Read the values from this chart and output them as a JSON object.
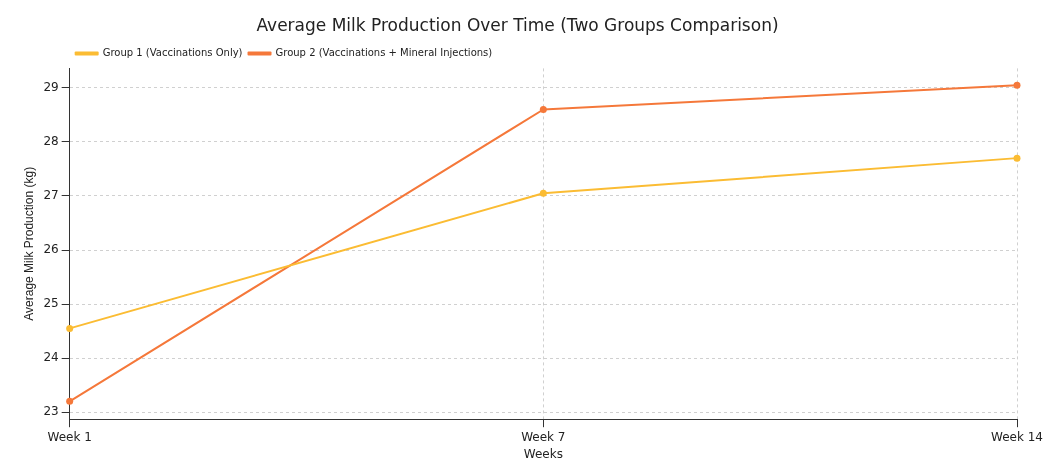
{
  "chart_data": {
    "type": "line",
    "title": "Average Milk Production Over Time (Two Groups Comparison)",
    "xlabel": "Weeks",
    "ylabel": "Average Milk Production (kg)",
    "categories": [
      "Week 1",
      "Week 7",
      "Week 14"
    ],
    "series": [
      {
        "name": "Group 1 (Vaccinations Only)",
        "color": "#fbbc33",
        "values": [
          24.55,
          27.05,
          27.7
        ]
      },
      {
        "name": "Group 2 (Vaccinations + Mineral Injections)",
        "color": "#f5783a",
        "values": [
          23.2,
          28.6,
          29.05
        ]
      }
    ],
    "ylim": [
      22.87,
      29.36
    ],
    "yticks": [
      23,
      24,
      25,
      26,
      27,
      28,
      29
    ],
    "grid": true,
    "legend": "top left",
    "marker": "circle",
    "line_style": "solid"
  }
}
